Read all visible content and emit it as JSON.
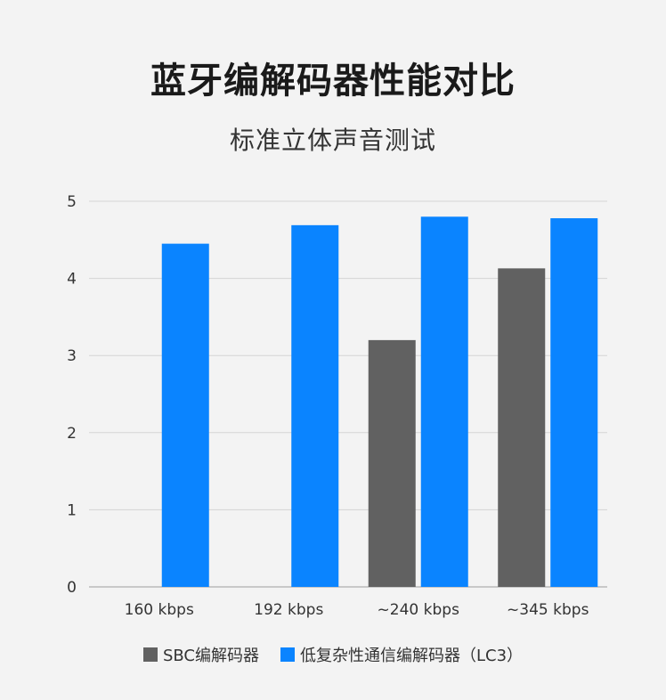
{
  "chart_data": {
    "type": "bar",
    "title": "蓝牙编解码器性能对比",
    "subtitle": "标准立体声音测试",
    "categories": [
      "160 kbps",
      "192 kbps",
      "~240 kbps",
      "~345 kbps"
    ],
    "series": [
      {
        "name": "SBC编解码器",
        "color": "#616161",
        "values": [
          null,
          null,
          3.2,
          4.13
        ]
      },
      {
        "name": "低复杂性通信编解码器（LC3）",
        "color": "#0a84ff",
        "values": [
          4.45,
          4.69,
          4.8,
          4.78
        ]
      }
    ],
    "ylim": [
      0,
      5
    ],
    "yticks": [
      "0",
      "1",
      "2",
      "3",
      "4",
      "5"
    ],
    "grid": true,
    "legend_position": "bottom"
  }
}
